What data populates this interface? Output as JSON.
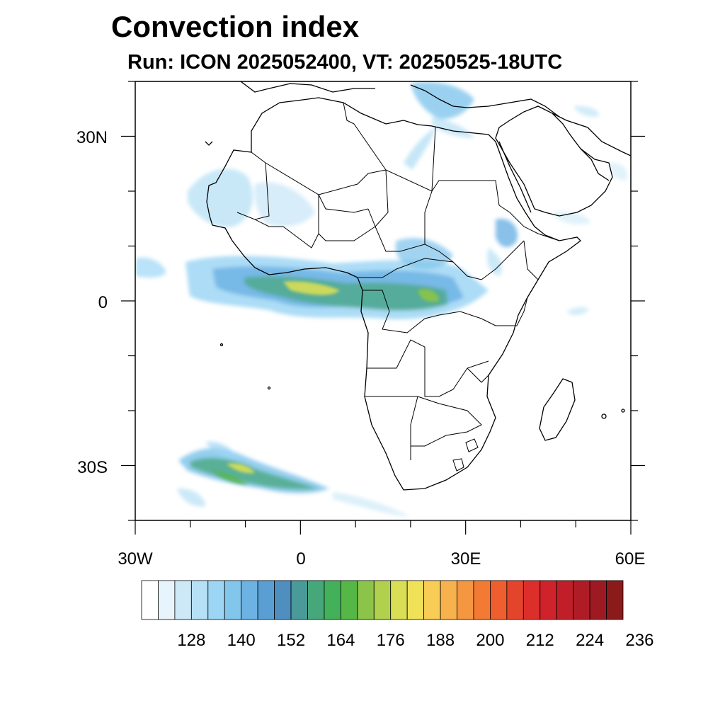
{
  "title": "Convection index",
  "subtitle": "Run: ICON 2025052400,  VT: 20250525-18UTC",
  "map": {
    "region": "Africa",
    "lon_range": [
      -30,
      60
    ],
    "lat_range": [
      -40,
      40
    ],
    "y_tick_labels": [
      "30N",
      "0",
      "30S"
    ],
    "x_tick_labels": [
      "30W",
      "0",
      "30E",
      "60E"
    ]
  },
  "colorbar": {
    "colors": [
      "#ffffff",
      "#e8f4fb",
      "#cde9f7",
      "#b5e0f5",
      "#9dd6f5",
      "#83c6ec",
      "#6cb2e3",
      "#5a9fd4",
      "#4f8fc0",
      "#4a9a9a",
      "#46a77a",
      "#43b05a",
      "#55b846",
      "#8cc449",
      "#b0d04e",
      "#d9de55",
      "#f0e258",
      "#f8cc55",
      "#f7b24d",
      "#f59640",
      "#f27a33",
      "#ee5e2e",
      "#e5442c",
      "#dc2f2c",
      "#cf222b",
      "#c01e28",
      "#b01c26",
      "#9e1a22",
      "#8b1a1a"
    ],
    "tick_labels": [
      "128",
      "140",
      "152",
      "164",
      "176",
      "188",
      "200",
      "212",
      "224",
      "236"
    ]
  }
}
